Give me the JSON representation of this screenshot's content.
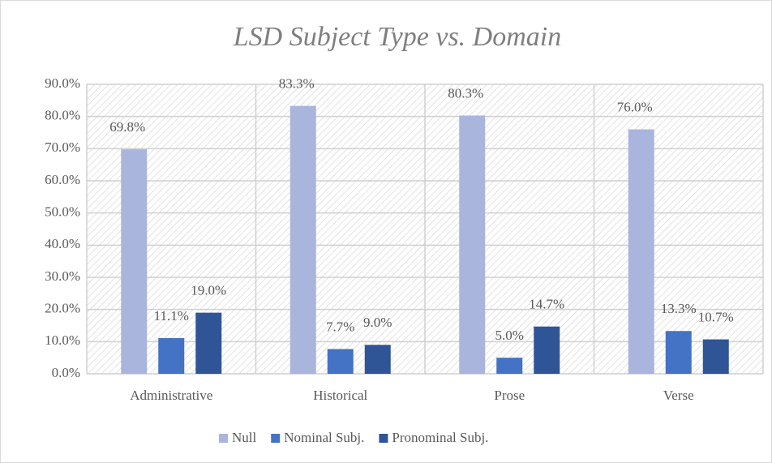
{
  "chart_data": {
    "type": "bar",
    "title": "LSD Subject Type vs. Domain",
    "categories": [
      "Administrative",
      "Historical",
      "Prose",
      "Verse"
    ],
    "series": [
      {
        "name": "Null",
        "color": "#a9b5dc",
        "values": [
          69.8,
          83.3,
          80.3,
          76.0
        ],
        "value_labels": [
          "69.8%",
          "83.3%",
          "80.3%",
          "76.0%"
        ]
      },
      {
        "name": "Nominal Subj.",
        "color": "#4472c4",
        "values": [
          11.1,
          7.7,
          5.0,
          13.3
        ],
        "value_labels": [
          "11.1%",
          "7.7%",
          "5.0%",
          "13.3%"
        ]
      },
      {
        "name": "Pronominal Subj.",
        "color": "#2f5597",
        "values": [
          19.0,
          9.0,
          14.7,
          10.7
        ],
        "value_labels": [
          "19.0%",
          "9.0%",
          "14.7%",
          "10.7%"
        ]
      }
    ],
    "ylim": [
      0,
      90
    ],
    "yticks": [
      {
        "value": 0,
        "label": "0.0%"
      },
      {
        "value": 10,
        "label": "10.0%"
      },
      {
        "value": 20,
        "label": "20.0%"
      },
      {
        "value": 30,
        "label": "30.0%"
      },
      {
        "value": 40,
        "label": "40.0%"
      },
      {
        "value": 50,
        "label": "50.0%"
      },
      {
        "value": 60,
        "label": "60.0%"
      },
      {
        "value": 70,
        "label": "70.0%"
      },
      {
        "value": 80,
        "label": "80.0%"
      },
      {
        "value": 90,
        "label": "90.0%"
      }
    ],
    "grid": true,
    "legend": "bottom"
  }
}
